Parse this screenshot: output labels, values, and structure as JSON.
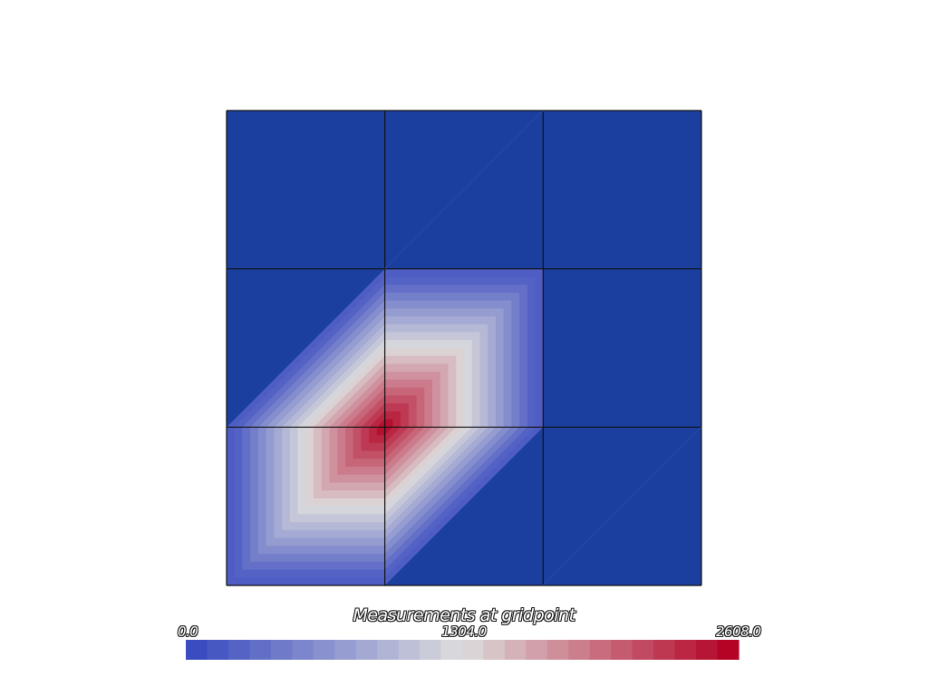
{
  "scalar_bar": {
    "title": "Measurements at gridpoint",
    "min_label": "0.0",
    "mid_label": "1304.0",
    "max_label": "2608.0",
    "min_value": 0,
    "max_value": 2608,
    "colormap": "coolwarm",
    "low_color": "#3b4cc0",
    "mid_color": "#dddddd",
    "high_color": "#b40426"
  },
  "mesh": {
    "background_color": "#1a3f9f",
    "grid_line_color": "#111111",
    "cells_x": 3,
    "cells_y": 3,
    "peak_value": 2608,
    "bands": 20
  }
}
